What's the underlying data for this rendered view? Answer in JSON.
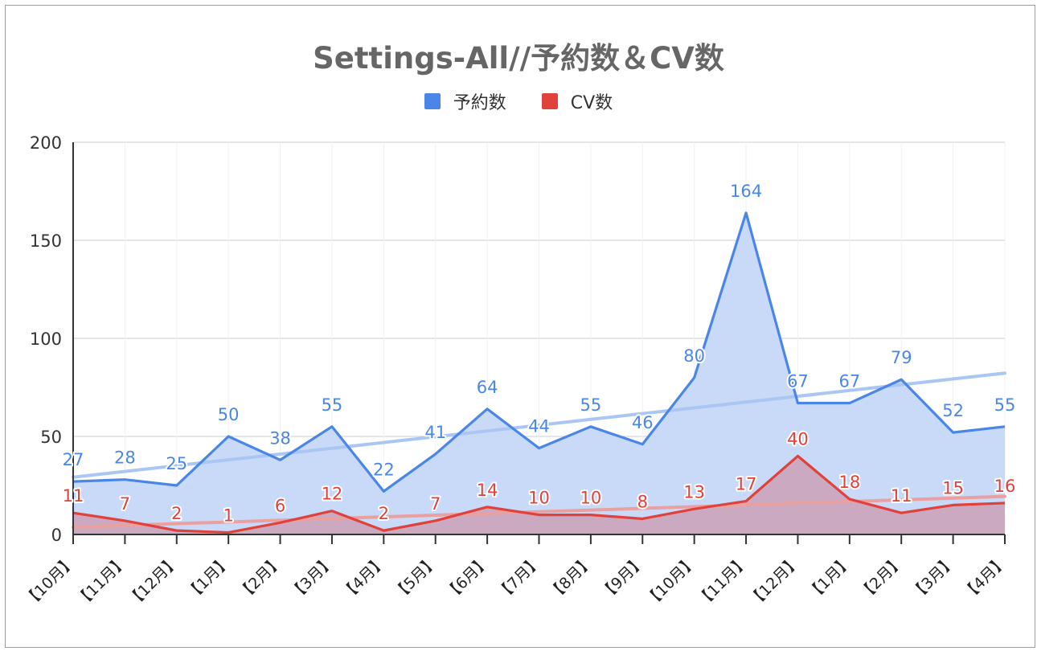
{
  "chart_data": {
    "type": "area",
    "title": "Settings-All//予約数＆CV数",
    "xlabel": "",
    "ylabel": "",
    "ylim": [
      0,
      200
    ],
    "yticks": [
      0,
      50,
      100,
      150,
      200
    ],
    "grid": true,
    "legend_position": "top",
    "trendlines": true,
    "categories": [
      "【10月】",
      "【11月】",
      "【12月】",
      "【1月】",
      "【2月】",
      "【3月】",
      "【4月】",
      "【5月】",
      "【6月】",
      "【7月】",
      "【8月】",
      "【9月】",
      "【10月】",
      "【11月】",
      "【12月】",
      "【1月】",
      "【2月】",
      "【3月】",
      "【4月】"
    ],
    "series": [
      {
        "name": "予約数",
        "color": "#4a86e8",
        "fill": "#c9daf8",
        "trend_color": "#a9c6f4",
        "values": [
          27,
          28,
          25,
          50,
          38,
          55,
          22,
          41,
          64,
          44,
          55,
          46,
          80,
          164,
          67,
          67,
          79,
          52,
          55
        ]
      },
      {
        "name": "CV数",
        "color": "#e0413a",
        "fill": "#cba7bd",
        "trend_color": "#eba0a0",
        "values": [
          11,
          7,
          2,
          1,
          6,
          12,
          2,
          7,
          14,
          10,
          10,
          8,
          13,
          17,
          40,
          18,
          11,
          15,
          16
        ]
      }
    ]
  }
}
